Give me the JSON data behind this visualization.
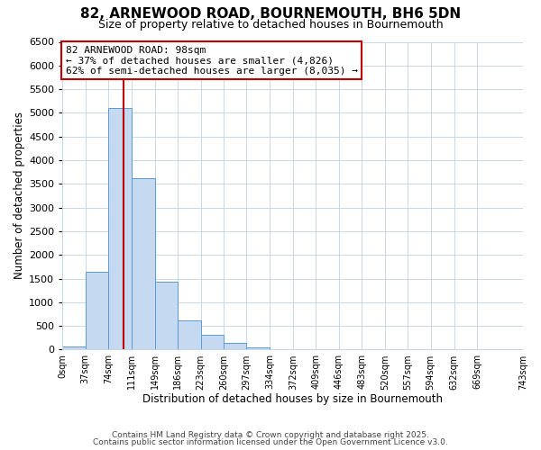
{
  "title": "82, ARNEWOOD ROAD, BOURNEMOUTH, BH6 5DN",
  "subtitle": "Size of property relative to detached houses in Bournemouth",
  "bar_heights": [
    60,
    1650,
    5100,
    3620,
    1430,
    610,
    310,
    140,
    50,
    10,
    0,
    0,
    0,
    0,
    0,
    0,
    0,
    0,
    0
  ],
  "bin_edges": [
    0,
    37,
    74,
    111,
    149,
    186,
    223,
    260,
    297,
    334,
    372,
    409,
    446,
    483,
    520,
    557,
    594,
    632,
    669,
    743
  ],
  "bin_labels": [
    "0sqm",
    "37sqm",
    "74sqm",
    "111sqm",
    "149sqm",
    "186sqm",
    "223sqm",
    "260sqm",
    "297sqm",
    "334sqm",
    "372sqm",
    "409sqm",
    "446sqm",
    "483sqm",
    "520sqm",
    "557sqm",
    "594sqm",
    "632sqm",
    "669sqm",
    "743sqm"
  ],
  "bar_color": "#c5d9f0",
  "bar_edge_color": "#5b9bd5",
  "vline_x": 98,
  "vline_color": "#c00000",
  "ylim": [
    0,
    6500
  ],
  "yticks": [
    0,
    500,
    1000,
    1500,
    2000,
    2500,
    3000,
    3500,
    4000,
    4500,
    5000,
    5500,
    6000,
    6500
  ],
  "xlabel": "Distribution of detached houses by size in Bournemouth",
  "ylabel": "Number of detached properties",
  "annotation_title": "82 ARNEWOOD ROAD: 98sqm",
  "annotation_line1": "← 37% of detached houses are smaller (4,826)",
  "annotation_line2": "62% of semi-detached houses are larger (8,035) →",
  "annotation_box_color": "#c00000",
  "footer_line1": "Contains HM Land Registry data © Crown copyright and database right 2025.",
  "footer_line2": "Contains public sector information licensed under the Open Government Licence v3.0.",
  "bg_color": "#ffffff",
  "grid_color": "#c8d8e8"
}
